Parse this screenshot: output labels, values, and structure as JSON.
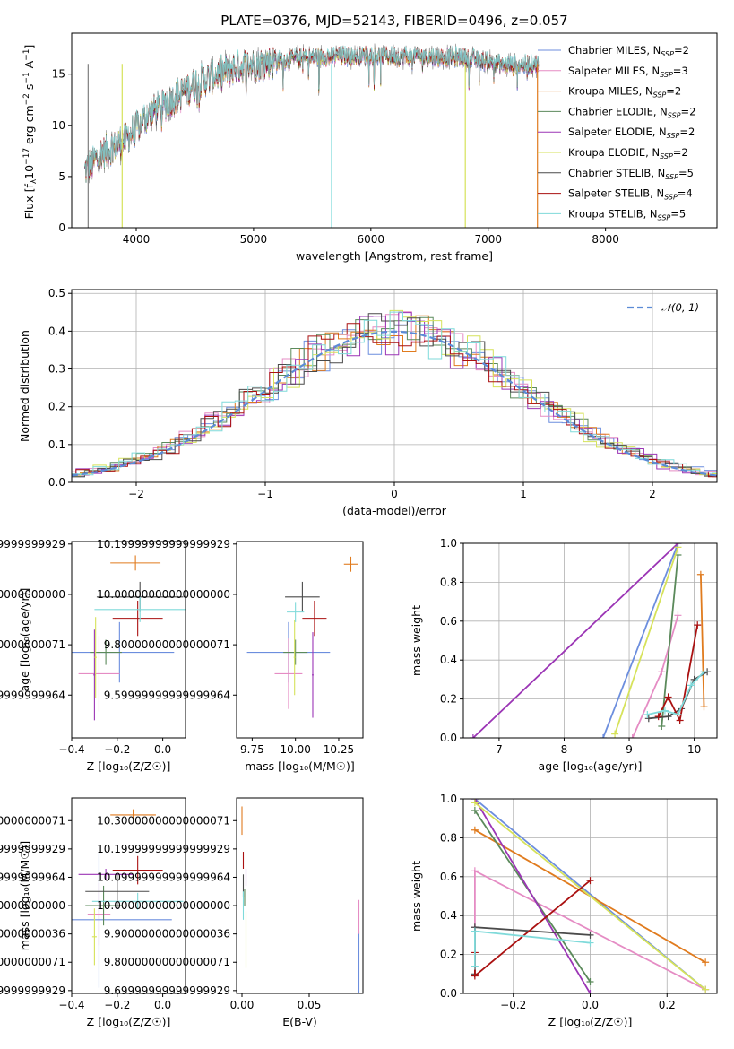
{
  "title": "PLATE=0376, MJD=52143, FIBERID=0496, z=0.057",
  "colors": {
    "Chabrier MILES": "#6c8ede",
    "Salpeter MILES": "#e58cc4",
    "Kroupa MILES": "#e07b1e",
    "Chabrier ELODIE": "#5b8a5b",
    "Salpeter ELODIE": "#9b35b5",
    "Kroupa ELODIE": "#d6e25a",
    "Chabrier STELIB": "#4a4a4a",
    "Salpeter STELIB": "#aa1111",
    "Kroupa STELIB": "#7fdada",
    "data": "#7f7f7f"
  },
  "chart_data": [
    {
      "id": "spectrum",
      "type": "line",
      "xlabel": "wavelength [Angstrom, rest frame]",
      "ylabel_parts": [
        "Flux [f",
        "λ",
        "10",
        "−17",
        " erg cm",
        "−2",
        " s",
        "−1",
        " A",
        "−1",
        "]"
      ],
      "xlim": [
        3450,
        8950
      ],
      "ylim": [
        0,
        19
      ],
      "xticks": [
        4000,
        5000,
        6000,
        7000,
        8000
      ],
      "yticks": [
        0,
        5,
        10,
        15
      ],
      "continuum_x": [
        3560,
        3700,
        3900,
        4100,
        4300,
        4500,
        4800,
        5200,
        5600,
        6000,
        6400,
        6800,
        7000,
        7200,
        7420
      ],
      "continuum_y": [
        5.5,
        7.2,
        8.5,
        11.0,
        12.5,
        14.0,
        15.5,
        16.3,
        16.7,
        16.8,
        16.7,
        16.6,
        16.2,
        15.8,
        16.0
      ],
      "legend": [
        {
          "name": "Chabrier MILES",
          "n": 2
        },
        {
          "name": "Salpeter MILES",
          "n": 3
        },
        {
          "name": "Kroupa MILES",
          "n": 2
        },
        {
          "name": "Chabrier ELODIE",
          "n": 2
        },
        {
          "name": "Salpeter ELODIE",
          "n": 2
        },
        {
          "name": "Kroupa ELODIE",
          "n": 2
        },
        {
          "name": "Chabrier STELIB",
          "n": 5
        },
        {
          "name": "Salpeter STELIB",
          "n": 4
        },
        {
          "name": "Kroupa STELIB",
          "n": 5
        }
      ],
      "legend_sub": "SSP"
    },
    {
      "id": "residuals",
      "type": "line",
      "xlabel": "(data-model)/error",
      "ylabel": "Normed distribution",
      "xlim": [
        -2.5,
        2.5
      ],
      "ylim": [
        0,
        0.51
      ],
      "xticks": [
        -2,
        -1,
        0,
        1,
        2
      ],
      "yticks": [
        0.0,
        0.1,
        0.2,
        0.3,
        0.4,
        0.5
      ],
      "legend": "𝒩(0, 1)",
      "grid": true
    },
    {
      "id": "age-vs-Z",
      "type": "scatter",
      "xlabel": "Z [log₁₀(Z/Z☉)]",
      "ylabel": "age  [log₁₀(age/yr)]",
      "xlim": [
        -0.4,
        0.1
      ],
      "ylim": [
        9.43,
        10.21
      ],
      "xticks": [
        -0.4,
        -0.2,
        0.0
      ],
      "yticks": [
        9.6,
        9.8,
        10.0,
        10.2
      ],
      "points": [
        {
          "model": "Chabrier MILES",
          "x": -0.19,
          "xerr": 0.24,
          "y": 9.77,
          "yerr": 0.12
        },
        {
          "model": "Salpeter MILES",
          "x": -0.28,
          "xerr": 0.09,
          "y": 9.685,
          "yerr": 0.15
        },
        {
          "model": "Kroupa MILES",
          "x": -0.12,
          "xerr": 0.11,
          "y": 10.125,
          "yerr": 0.03
        },
        {
          "model": "Chabrier ELODIE",
          "x": -0.25,
          "xerr": 0.07,
          "y": 9.77,
          "yerr": 0.05
        },
        {
          "model": "Salpeter ELODIE",
          "x": -0.3,
          "xerr": 0.005,
          "y": 9.68,
          "yerr": 0.18
        },
        {
          "model": "Kroupa ELODIE",
          "x": -0.295,
          "xerr": 0.005,
          "y": 9.75,
          "yerr": 0.16
        },
        {
          "model": "Chabrier STELIB",
          "x": -0.1,
          "xerr": 0.19,
          "y": 9.99,
          "yerr": 0.06
        },
        {
          "model": "Salpeter STELIB",
          "x": -0.11,
          "xerr": 0.11,
          "y": 9.905,
          "yerr": 0.07
        },
        {
          "model": "Kroupa STELIB",
          "x": -0.1,
          "xerr": 0.2,
          "y": 9.94,
          "yerr": 0.05
        }
      ]
    },
    {
      "id": "age-vs-mass",
      "type": "scatter",
      "xlabel": "mass [log₁₀(M/M☉)]",
      "ylabel": "",
      "xlim": [
        9.66,
        10.39
      ],
      "ylim": [
        9.43,
        10.21
      ],
      "xticks": [
        9.75,
        10.0,
        10.25
      ],
      "yticks": [
        9.6,
        9.8,
        10.0,
        10.2
      ],
      "points": [
        {
          "model": "Chabrier MILES",
          "x": 9.96,
          "xerr": 0.24,
          "y": 9.77,
          "yerr": 0.12
        },
        {
          "model": "Salpeter MILES",
          "x": 9.96,
          "xerr": 0.08,
          "y": 9.685,
          "yerr": 0.14
        },
        {
          "model": "Kroupa MILES",
          "x": 10.32,
          "xerr": 0.04,
          "y": 10.12,
          "yerr": 0.03
        },
        {
          "model": "Chabrier ELODIE",
          "x": 10.0,
          "xerr": 0.07,
          "y": 9.77,
          "yerr": 0.05
        },
        {
          "model": "Salpeter ELODIE",
          "x": 10.1,
          "xerr": 0.005,
          "y": 9.68,
          "yerr": 0.17
        },
        {
          "model": "Kroupa ELODIE",
          "x": 9.995,
          "xerr": 0.005,
          "y": 9.75,
          "yerr": 0.15
        },
        {
          "model": "Chabrier STELIB",
          "x": 10.04,
          "xerr": 0.1,
          "y": 9.99,
          "yerr": 0.06
        },
        {
          "model": "Salpeter STELIB",
          "x": 10.11,
          "xerr": 0.07,
          "y": 9.905,
          "yerr": 0.07
        },
        {
          "model": "Kroupa STELIB",
          "x": 10.0,
          "xerr": 0.05,
          "y": 9.93,
          "yerr": 0.04
        }
      ]
    },
    {
      "id": "weight-vs-age",
      "type": "line",
      "xlabel": "age  [log₁₀(age/yr)]",
      "ylabel": "mass weight",
      "xlim": [
        6.45,
        10.35
      ],
      "ylim": [
        0,
        1.0
      ],
      "xticks": [
        7,
        8,
        9,
        10
      ],
      "yticks": [
        0.0,
        0.2,
        0.4,
        0.6,
        0.8,
        1.0
      ],
      "grid": true,
      "series": [
        {
          "model": "Chabrier MILES",
          "x": [
            8.6,
            9.75
          ],
          "y": [
            0.0,
            1.0
          ]
        },
        {
          "model": "Salpeter MILES",
          "x": [
            9.05,
            9.5,
            9.75
          ],
          "y": [
            0.0,
            0.34,
            0.63
          ]
        },
        {
          "model": "Kroupa MILES",
          "x": [
            10.1,
            10.15
          ],
          "y": [
            0.84,
            0.16
          ]
        },
        {
          "model": "Chabrier ELODIE",
          "x": [
            9.5,
            9.75
          ],
          "y": [
            0.06,
            0.94
          ]
        },
        {
          "model": "Salpeter ELODIE",
          "x": [
            6.6,
            9.75
          ],
          "y": [
            0.0,
            1.0
          ]
        },
        {
          "model": "Kroupa ELODIE",
          "x": [
            8.78,
            9.75
          ],
          "y": [
            0.02,
            0.98
          ]
        },
        {
          "model": "Chabrier STELIB",
          "x": [
            9.3,
            9.6,
            9.8,
            10.0,
            10.2
          ],
          "y": [
            0.1,
            0.11,
            0.15,
            0.3,
            0.34
          ]
        },
        {
          "model": "Salpeter STELIB",
          "x": [
            9.45,
            9.6,
            9.78,
            10.05
          ],
          "y": [
            0.11,
            0.21,
            0.09,
            0.58
          ]
        },
        {
          "model": "Kroupa STELIB",
          "x": [
            9.28,
            9.55,
            9.75,
            9.95,
            10.15
          ],
          "y": [
            0.12,
            0.14,
            0.12,
            0.27,
            0.34
          ]
        }
      ]
    },
    {
      "id": "mass-vs-Z",
      "type": "scatter",
      "xlabel": "Z [log₁₀(Z/Z☉)]",
      "ylabel": "mass [log₁₀(M/M☉)]",
      "xlim": [
        -0.4,
        0.1
      ],
      "ylim": [
        9.69,
        10.38
      ],
      "xticks": [
        -0.4,
        -0.2,
        0.0
      ],
      "yticks": [
        9.7,
        9.8,
        9.9,
        10.0,
        10.1,
        10.2,
        10.3
      ],
      "points": [
        {
          "model": "Chabrier MILES",
          "x": -0.28,
          "xerr": 0.32,
          "y": 9.95,
          "yerr": 0.24
        },
        {
          "model": "Salpeter MILES",
          "x": -0.28,
          "xerr": 0.05,
          "y": 9.97,
          "yerr": 0.11
        },
        {
          "model": "Kroupa MILES",
          "x": -0.13,
          "xerr": 0.1,
          "y": 10.32,
          "yerr": 0.02
        },
        {
          "model": "Chabrier ELODIE",
          "x": -0.26,
          "xerr": 0.08,
          "y": 10.0,
          "yerr": 0.07
        },
        {
          "model": "Salpeter ELODIE",
          "x": -0.25,
          "xerr": 0.12,
          "y": 10.11,
          "yerr": 0.02
        },
        {
          "model": "Kroupa ELODIE",
          "x": -0.3,
          "xerr": 0.01,
          "y": 9.89,
          "yerr": 0.1
        },
        {
          "model": "Chabrier STELIB",
          "x": -0.2,
          "xerr": 0.14,
          "y": 10.05,
          "yerr": 0.06
        },
        {
          "model": "Salpeter STELIB",
          "x": -0.11,
          "xerr": 0.11,
          "y": 10.125,
          "yerr": 0.05
        },
        {
          "model": "Kroupa STELIB",
          "x": -0.11,
          "xerr": 0.2,
          "y": 10.015,
          "yerr": 0.03
        }
      ]
    },
    {
      "id": "mass-vs-ebv",
      "type": "scatter",
      "xlabel": "E(B-V)",
      "ylabel": "",
      "xlim": [
        -0.004,
        0.09
      ],
      "ylim": [
        9.69,
        10.38
      ],
      "xticks": [
        0.0,
        0.05
      ],
      "yticks": [
        9.7,
        9.8,
        9.9,
        10.0,
        10.1,
        10.2,
        10.3
      ],
      "points": [
        {
          "model": "Chabrier MILES",
          "x": 0.087,
          "xerr": 0,
          "y": 9.8,
          "yerr": 0.11
        },
        {
          "model": "Salpeter MILES",
          "x": 0.087,
          "xerr": 0,
          "y": 9.96,
          "yerr": 0.06
        },
        {
          "model": "Kroupa MILES",
          "x": 0.0,
          "xerr": 0,
          "y": 10.3,
          "yerr": 0.05
        },
        {
          "model": "Chabrier ELODIE",
          "x": 0.002,
          "xerr": 0,
          "y": 10.03,
          "yerr": 0.03
        },
        {
          "model": "Salpeter ELODIE",
          "x": 0.003,
          "xerr": 0,
          "y": 10.1,
          "yerr": 0.03
        },
        {
          "model": "Kroupa ELODIE",
          "x": 0.003,
          "xerr": 0,
          "y": 9.88,
          "yerr": 0.1
        },
        {
          "model": "Chabrier STELIB",
          "x": 0.001,
          "xerr": 0,
          "y": 10.07,
          "yerr": 0.04
        },
        {
          "model": "Salpeter STELIB",
          "x": 0.001,
          "xerr": 0,
          "y": 10.16,
          "yerr": 0.03
        },
        {
          "model": "Kroupa STELIB",
          "x": 0.001,
          "xerr": 0,
          "y": 10.0,
          "yerr": 0.05
        }
      ]
    },
    {
      "id": "weight-vs-Z",
      "type": "line",
      "xlabel": "Z [log₁₀(Z/Z☉)]",
      "ylabel": "mass weight",
      "xlim": [
        -0.33,
        0.33
      ],
      "ylim": [
        0,
        1.0
      ],
      "xticks": [
        -0.2,
        0.0,
        0.2
      ],
      "yticks": [
        0.0,
        0.2,
        0.4,
        0.6,
        0.8,
        1.0
      ],
      "grid": true,
      "series": [
        {
          "model": "Chabrier MILES",
          "x": [
            -0.3,
            0.3
          ],
          "y": [
            1.0,
            0.02
          ]
        },
        {
          "model": "Salpeter MILES",
          "x": [
            -0.3,
            -0.3,
            0.3
          ],
          "y": [
            0.34,
            0.63,
            0.02
          ]
        },
        {
          "model": "Kroupa MILES",
          "x": [
            -0.3,
            0.3
          ],
          "y": [
            0.84,
            0.16
          ]
        },
        {
          "model": "Chabrier ELODIE",
          "x": [
            -0.3,
            0.0
          ],
          "y": [
            0.94,
            0.06
          ]
        },
        {
          "model": "Salpeter ELODIE",
          "x": [
            -0.3,
            0.0
          ],
          "y": [
            1.0,
            0.0
          ]
        },
        {
          "model": "Kroupa ELODIE",
          "x": [
            -0.3,
            0.3
          ],
          "y": [
            0.98,
            0.02
          ]
        },
        {
          "model": "Chabrier STELIB",
          "x": [
            -0.3,
            -0.3,
            0.0
          ],
          "y": [
            0.1,
            0.34,
            0.3
          ]
        },
        {
          "model": "Salpeter STELIB",
          "x": [
            -0.3,
            -0.3,
            0.0
          ],
          "y": [
            0.21,
            0.09,
            0.58
          ]
        },
        {
          "model": "Kroupa STELIB",
          "x": [
            -0.3,
            -0.3,
            0.0
          ],
          "y": [
            0.14,
            0.32,
            0.26
          ]
        }
      ]
    }
  ]
}
